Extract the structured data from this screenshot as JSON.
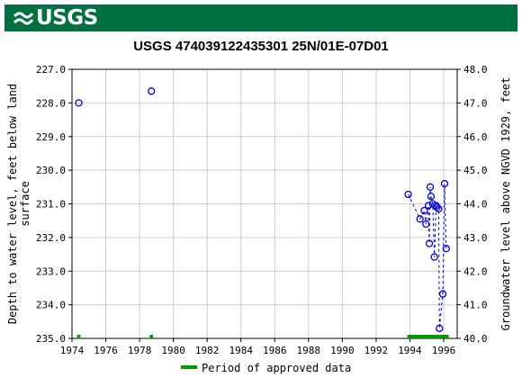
{
  "header": {
    "logo_text": "USGS",
    "brand_color": "#006F41"
  },
  "chart_data": {
    "type": "scatter",
    "title": "USGS 474039122435301 25N/01E-07D01",
    "ylabel_left": "Depth to water level, feet below land surface",
    "ylabel_right": "Groundwater level above NGVD 1929, feet",
    "legend_label": "Period of approved data",
    "legend_placement": "bottom-center",
    "grid": true,
    "xlim": [
      1974,
      1996.8
    ],
    "ylim_left": [
      227.0,
      235.0
    ],
    "ylim_right": [
      48.0,
      40.0
    ],
    "x_ticks": [
      "1974",
      "1976",
      "1978",
      "1980",
      "1982",
      "1984",
      "1986",
      "1988",
      "1990",
      "1992",
      "1994",
      "1996"
    ],
    "y_left_ticks": [
      "227.0",
      "228.0",
      "229.0",
      "230.0",
      "231.0",
      "232.0",
      "233.0",
      "234.0",
      "235.0"
    ],
    "y_right_ticks": [
      "48.0",
      "47.0",
      "46.0",
      "45.0",
      "44.0",
      "43.0",
      "42.0",
      "41.0",
      "40.0"
    ],
    "series": [
      {
        "marker_color": "#0000CC",
        "line_style": "dashed",
        "points": [
          {
            "x": 1974.4,
            "y": 228.0,
            "connected": false
          },
          {
            "x": 1978.7,
            "y": 227.65,
            "connected": false
          },
          {
            "x": 1993.9,
            "y": 230.72,
            "connected": true
          },
          {
            "x": 1994.6,
            "y": 231.45,
            "connected": true
          },
          {
            "x": 1994.85,
            "y": 231.2,
            "connected": true
          },
          {
            "x": 1994.95,
            "y": 231.6,
            "connected": true
          },
          {
            "x": 1995.1,
            "y": 231.05,
            "connected": true
          },
          {
            "x": 1995.15,
            "y": 232.18,
            "connected": true
          },
          {
            "x": 1995.2,
            "y": 230.5,
            "connected": true
          },
          {
            "x": 1995.25,
            "y": 230.78,
            "connected": true
          },
          {
            "x": 1995.35,
            "y": 231.0,
            "connected": true
          },
          {
            "x": 1995.45,
            "y": 232.58,
            "connected": true
          },
          {
            "x": 1995.55,
            "y": 231.05,
            "connected": true
          },
          {
            "x": 1995.6,
            "y": 231.1,
            "connected": true
          },
          {
            "x": 1995.7,
            "y": 231.15,
            "connected": true
          },
          {
            "x": 1995.75,
            "y": 234.7,
            "connected": true
          },
          {
            "x": 1995.95,
            "y": 233.68,
            "connected": true
          },
          {
            "x": 1996.05,
            "y": 230.4,
            "connected": true
          },
          {
            "x": 1996.15,
            "y": 232.33,
            "connected": true
          }
        ]
      }
    ],
    "approved_periods": {
      "color": "#009900",
      "ranges": [
        [
          1974.3,
          1974.5
        ],
        [
          1978.6,
          1978.8
        ],
        [
          1993.85,
          1996.3
        ]
      ]
    }
  }
}
